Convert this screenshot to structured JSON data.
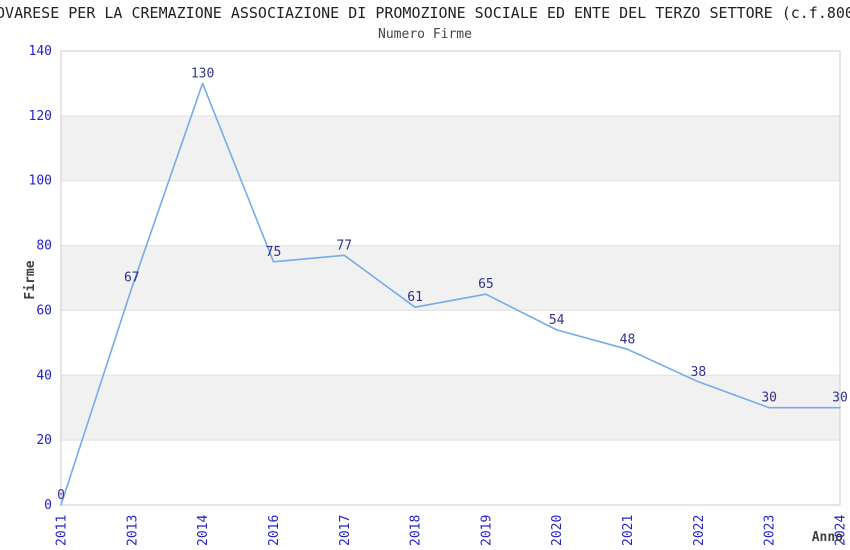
{
  "chart_data": {
    "type": "line",
    "title": "OVARESE PER LA CREMAZIONE ASSOCIAZIONE DI PROMOZIONE SOCIALE ED ENTE DEL TERZO SETTORE (c.f.800",
    "subtitle": "Numero Firme",
    "categories": [
      "2011",
      "2013",
      "2014",
      "2016",
      "2017",
      "2018",
      "2019",
      "2020",
      "2021",
      "2022",
      "2023",
      "2024"
    ],
    "values": [
      0,
      67,
      130,
      75,
      77,
      61,
      65,
      54,
      48,
      38,
      30,
      30
    ],
    "xlabel": "Anno",
    "ylabel": "Firme",
    "ylim": [
      0,
      140
    ],
    "ytick_step": 20,
    "yticks": [
      0,
      20,
      40,
      60,
      80,
      100,
      120,
      140
    ],
    "grid": true,
    "alternating_horizontal_bands": true,
    "data_labels_visible": true,
    "legend_position": "none",
    "x_tick_rotation_deg": 90
  },
  "colors": {
    "series_line": "#76abe9",
    "tick_label": "#2323cc",
    "data_label": "#32328e",
    "band_fill": "#f1f1f1",
    "gridline": "#e0e0e0",
    "plot_border": "#cccccc",
    "title_text": "#222222",
    "subtitle_text": "#454545",
    "axis_title_text": "#404040",
    "background": "#ffffff"
  }
}
